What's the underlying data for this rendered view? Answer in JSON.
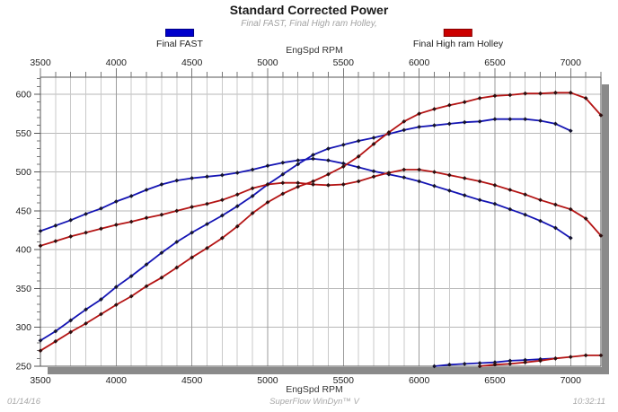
{
  "title": "Standard Corrected Power",
  "subtitle": "Final FAST, Final High ram Holley,",
  "axis_top_label": "EngSpd RPM",
  "axis_bottom_label": "EngSpd RPM",
  "footer": {
    "date": "01/14/16",
    "software": "SuperFlow WinDyn™ V",
    "time": "10:32:11"
  },
  "legend": [
    {
      "label": "Final FAST",
      "color": "#0000cc"
    },
    {
      "label": "Final High ram Holley",
      "color": "#cc0000"
    }
  ],
  "chart_data": {
    "type": "line",
    "title": "Standard Corrected Power",
    "subtitle": "Final FAST, Final High ram Holley,",
    "xlabel": "EngSpd RPM",
    "ylabel": "",
    "xlim": [
      3500,
      7200
    ],
    "ylim": [
      250,
      622
    ],
    "x_major_ticks": [
      3500,
      4000,
      4500,
      5000,
      5500,
      6000,
      6500,
      7000
    ],
    "x_minor_step": 100,
    "y_major_ticks": [
      250,
      300,
      350,
      400,
      450,
      500,
      550,
      600
    ],
    "y_minor_step": 10,
    "grid": "x minor+major gridlines every 100/500 RPM, y gridlines every 50",
    "legend_position": "top",
    "axis_labels_shown": "RPM axis labeled on top and bottom",
    "series": [
      {
        "id": "final-fast-power",
        "legend": "Final FAST",
        "color": "#1414b4",
        "marker": "diamond",
        "marker_color": "#14142e",
        "points": [
          [
            3500,
            283
          ],
          [
            3600,
            295
          ],
          [
            3700,
            309
          ],
          [
            3800,
            323
          ],
          [
            3900,
            336
          ],
          [
            4000,
            352
          ],
          [
            4100,
            366
          ],
          [
            4200,
            381
          ],
          [
            4300,
            396
          ],
          [
            4400,
            410
          ],
          [
            4500,
            422
          ],
          [
            4600,
            433
          ],
          [
            4700,
            444
          ],
          [
            4800,
            456
          ],
          [
            4900,
            469
          ],
          [
            5000,
            484
          ],
          [
            5100,
            497
          ],
          [
            5200,
            510
          ],
          [
            5300,
            522
          ],
          [
            5400,
            530
          ],
          [
            5500,
            535
          ],
          [
            5600,
            540
          ],
          [
            5700,
            544
          ],
          [
            5800,
            549
          ],
          [
            5900,
            554
          ],
          [
            6000,
            558
          ],
          [
            6100,
            560
          ],
          [
            6200,
            562
          ],
          [
            6300,
            564
          ],
          [
            6400,
            565
          ],
          [
            6500,
            568
          ],
          [
            6600,
            568
          ],
          [
            6700,
            568
          ],
          [
            6800,
            566
          ],
          [
            6900,
            562
          ],
          [
            7000,
            553
          ]
        ]
      },
      {
        "id": "final-fast-torque",
        "legend": "Final FAST",
        "color": "#1414b4",
        "marker": "diamond",
        "marker_color": "#14142e",
        "points": [
          [
            3500,
            424
          ],
          [
            3600,
            431
          ],
          [
            3700,
            438
          ],
          [
            3800,
            446
          ],
          [
            3900,
            453
          ],
          [
            4000,
            462
          ],
          [
            4100,
            469
          ],
          [
            4200,
            477
          ],
          [
            4300,
            484
          ],
          [
            4400,
            489
          ],
          [
            4500,
            492
          ],
          [
            4600,
            494
          ],
          [
            4700,
            496
          ],
          [
            4800,
            499
          ],
          [
            4900,
            503
          ],
          [
            5000,
            508
          ],
          [
            5100,
            512
          ],
          [
            5200,
            515
          ],
          [
            5300,
            517
          ],
          [
            5400,
            515
          ],
          [
            5500,
            511
          ],
          [
            5600,
            506
          ],
          [
            5700,
            501
          ],
          [
            5800,
            497
          ],
          [
            5900,
            493
          ],
          [
            6000,
            488
          ],
          [
            6100,
            482
          ],
          [
            6200,
            476
          ],
          [
            6300,
            470
          ],
          [
            6400,
            464
          ],
          [
            6500,
            459
          ],
          [
            6600,
            452
          ],
          [
            6700,
            445
          ],
          [
            6800,
            437
          ],
          [
            6900,
            428
          ],
          [
            7000,
            415
          ]
        ]
      },
      {
        "id": "final-holley-power",
        "legend": "Final High ram Holley",
        "color": "#b41414",
        "marker": "diamond",
        "marker_color": "#2e0e0e",
        "points": [
          [
            3500,
            270
          ],
          [
            3600,
            282
          ],
          [
            3700,
            294
          ],
          [
            3800,
            305
          ],
          [
            3900,
            317
          ],
          [
            4000,
            329
          ],
          [
            4100,
            340
          ],
          [
            4200,
            353
          ],
          [
            4300,
            364
          ],
          [
            4400,
            377
          ],
          [
            4500,
            390
          ],
          [
            4600,
            402
          ],
          [
            4700,
            415
          ],
          [
            4800,
            430
          ],
          [
            4900,
            447
          ],
          [
            5000,
            461
          ],
          [
            5100,
            472
          ],
          [
            5200,
            481
          ],
          [
            5300,
            488
          ],
          [
            5400,
            497
          ],
          [
            5500,
            507
          ],
          [
            5600,
            520
          ],
          [
            5700,
            536
          ],
          [
            5800,
            551
          ],
          [
            5900,
            565
          ],
          [
            6000,
            575
          ],
          [
            6100,
            581
          ],
          [
            6200,
            586
          ],
          [
            6300,
            590
          ],
          [
            6400,
            595
          ],
          [
            6500,
            598
          ],
          [
            6600,
            599
          ],
          [
            6700,
            601
          ],
          [
            6800,
            601
          ],
          [
            6900,
            602
          ],
          [
            7000,
            602
          ],
          [
            7100,
            595
          ],
          [
            7200,
            573
          ]
        ]
      },
      {
        "id": "final-holley-torque",
        "legend": "Final High ram Holley",
        "color": "#b41414",
        "marker": "diamond",
        "marker_color": "#2e0e0e",
        "points": [
          [
            3500,
            405
          ],
          [
            3600,
            411
          ],
          [
            3700,
            417
          ],
          [
            3800,
            422
          ],
          [
            3900,
            427
          ],
          [
            4000,
            432
          ],
          [
            4100,
            436
          ],
          [
            4200,
            441
          ],
          [
            4300,
            445
          ],
          [
            4400,
            450
          ],
          [
            4500,
            455
          ],
          [
            4600,
            459
          ],
          [
            4700,
            464
          ],
          [
            4800,
            471
          ],
          [
            4900,
            479
          ],
          [
            5000,
            484
          ],
          [
            5100,
            486
          ],
          [
            5200,
            486
          ],
          [
            5300,
            484
          ],
          [
            5400,
            483
          ],
          [
            5500,
            484
          ],
          [
            5600,
            488
          ],
          [
            5700,
            494
          ],
          [
            5800,
            499
          ],
          [
            5900,
            503
          ],
          [
            6000,
            503
          ],
          [
            6100,
            500
          ],
          [
            6200,
            496
          ],
          [
            6300,
            492
          ],
          [
            6400,
            488
          ],
          [
            6500,
            483
          ],
          [
            6600,
            477
          ],
          [
            6700,
            471
          ],
          [
            6800,
            464
          ],
          [
            6900,
            458
          ],
          [
            7000,
            452
          ],
          [
            7100,
            440
          ],
          [
            7200,
            418
          ]
        ]
      },
      {
        "id": "final-fast-lower-trace",
        "legend": "Final FAST",
        "color": "#1414b4",
        "marker": "diamond",
        "marker_color": "#14142e",
        "points": [
          [
            6100,
            250
          ],
          [
            6200,
            252
          ],
          [
            6300,
            253
          ],
          [
            6400,
            254
          ],
          [
            6500,
            255
          ],
          [
            6600,
            257
          ],
          [
            6700,
            258
          ],
          [
            6800,
            259
          ],
          [
            6900,
            260
          ]
        ]
      },
      {
        "id": "final-holley-lower-trace",
        "legend": "Final High ram Holley",
        "color": "#b41414",
        "marker": "diamond",
        "marker_color": "#2e0e0e",
        "points": [
          [
            6400,
            250
          ],
          [
            6500,
            252
          ],
          [
            6600,
            253
          ],
          [
            6700,
            255
          ],
          [
            6800,
            257
          ],
          [
            6900,
            260
          ],
          [
            7000,
            262
          ],
          [
            7100,
            264
          ],
          [
            7200,
            264
          ]
        ]
      }
    ]
  }
}
